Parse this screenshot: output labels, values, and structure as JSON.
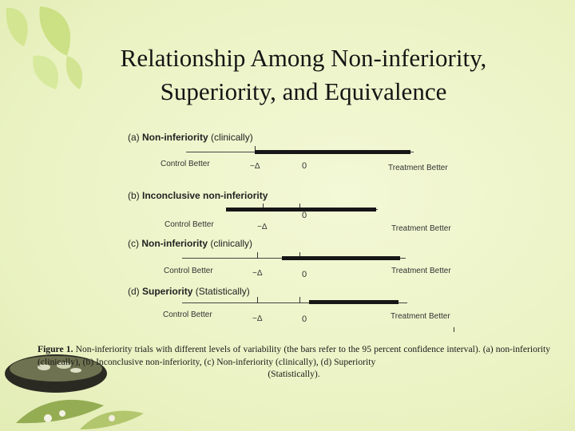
{
  "slide": {
    "title_line1": "Relationship Among Non-inferiority,",
    "title_line2": "Superiority, and Equivalence"
  },
  "figure": {
    "panels": [
      {
        "letter": "(a)",
        "name": "Non-inferiority",
        "qualifier": "(clinically)",
        "left_label": "Control Better",
        "delta_label": "−Δ",
        "zero_label": "0",
        "right_label": "Treatment Better"
      },
      {
        "letter": "(b)",
        "name": "Inconclusive non-inferiority",
        "qualifier": "",
        "left_label": "Control Better",
        "delta_label": "−Δ",
        "zero_label": "0",
        "right_label": "Treatment Better"
      },
      {
        "letter": "(c)",
        "name": "Non-inferiority",
        "qualifier": "(clinically)",
        "left_label": "Control Better",
        "delta_label": "−Δ",
        "zero_label": "0",
        "right_label": "Treatment Better"
      },
      {
        "letter": "(d)",
        "name": "Superiority",
        "qualifier": "(Statistically)",
        "left_label": "Control Better",
        "delta_label": "−Δ",
        "zero_label": "0",
        "right_label": "Treatment Better"
      }
    ],
    "caption_label": "Figure 1.",
    "caption_text": "Non-inferiority trials with different levels of variability (the bars refer to the 95 percent confidence interval). (a) non-inferiority (clinically), (b) Inconclusive non-inferiority, (c) Non-inferiority (clinically), (d) Superiority",
    "caption_end": "(Statistically)."
  },
  "colors": {
    "background": "#eef5c8",
    "bar": "#161616",
    "leaf": "#c8e07a"
  }
}
